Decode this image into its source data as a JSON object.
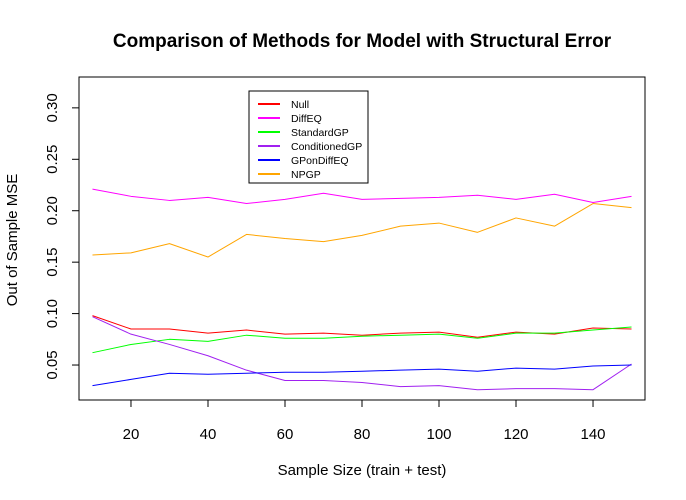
{
  "chart_data": {
    "type": "line",
    "title": "Comparison of Methods for Model with Structural Error",
    "xlabel": "Sample Size (train + test)",
    "ylabel": "Out of Sample MSE",
    "xlim": [
      6.5,
      153.5
    ],
    "ylim": [
      0.016,
      0.33
    ],
    "xticks": [
      20,
      40,
      60,
      80,
      100,
      120,
      140
    ],
    "yticks": [
      0.05,
      0.1,
      0.15,
      0.2,
      0.25,
      0.3
    ],
    "ytick_labels": [
      "0.05",
      "0.10",
      "0.15",
      "0.20",
      "0.25",
      "0.30"
    ],
    "grid": false,
    "legend_position": "top-left",
    "x": [
      10,
      20,
      30,
      40,
      50,
      60,
      70,
      80,
      90,
      100,
      110,
      120,
      130,
      140,
      150
    ],
    "series": [
      {
        "name": "Null",
        "color": "#ff0000",
        "values": [
          0.098,
          0.085,
          0.085,
          0.081,
          0.084,
          0.08,
          0.081,
          0.079,
          0.081,
          0.082,
          0.077,
          0.082,
          0.08,
          0.086,
          0.085
        ]
      },
      {
        "name": "DiffEQ",
        "color": "#ff00ff",
        "values": [
          0.221,
          0.214,
          0.21,
          0.213,
          0.207,
          0.211,
          0.217,
          0.211,
          0.212,
          0.213,
          0.215,
          0.211,
          0.216,
          0.208,
          0.214
        ]
      },
      {
        "name": "StandardGP",
        "color": "#00ff00",
        "values": [
          0.062,
          0.07,
          0.075,
          0.073,
          0.079,
          0.076,
          0.076,
          0.078,
          0.079,
          0.08,
          0.076,
          0.081,
          0.081,
          0.084,
          0.087
        ]
      },
      {
        "name": "ConditionedGP",
        "color": "#a020f0",
        "values": [
          0.097,
          0.08,
          0.07,
          0.059,
          0.045,
          0.035,
          0.035,
          0.033,
          0.029,
          0.03,
          0.026,
          0.027,
          0.027,
          0.026,
          0.051
        ]
      },
      {
        "name": "GPonDiffEQ",
        "color": "#0000ff",
        "values": [
          0.03,
          0.036,
          0.042,
          0.041,
          0.042,
          0.043,
          0.043,
          0.044,
          0.045,
          0.046,
          0.044,
          0.047,
          0.046,
          0.049,
          0.05
        ]
      },
      {
        "name": "NPGP",
        "color": "#ffa500",
        "values": [
          0.157,
          0.159,
          0.168,
          0.155,
          0.177,
          0.173,
          0.17,
          0.176,
          0.185,
          0.188,
          0.179,
          0.193,
          0.185,
          0.207,
          0.203
        ]
      }
    ]
  }
}
